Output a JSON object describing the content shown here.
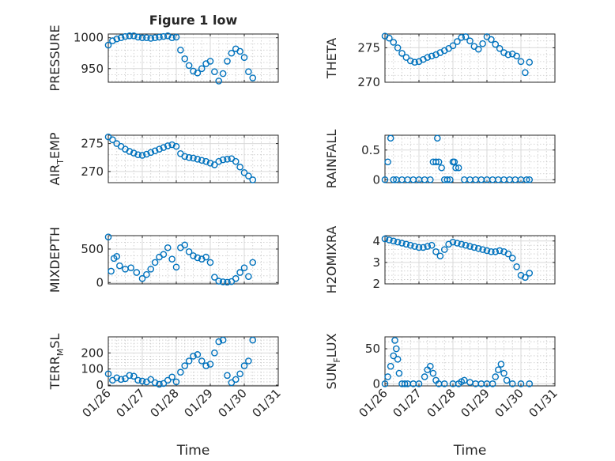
{
  "figure": {
    "title": "Figure 1 low"
  },
  "colors": {
    "marker": "#0072BD",
    "axis": "#262626",
    "grid": "#d9d9d9"
  },
  "chart_data": [
    {
      "id": "pressure",
      "type": "scatter",
      "title": "Figure 1 low",
      "ylabel": "PRESSURE",
      "ylabel_sub": "",
      "xlabel": "",
      "xticklabels": [],
      "ylim": [
        928,
        1006
      ],
      "yticks": [
        950,
        1000
      ],
      "yticklabels": [
        "950",
        "1000"
      ],
      "xlim": [
        "01/26",
        "01/31"
      ],
      "grid": true,
      "x": [
        "01/26 00:00",
        "01/26 03:00",
        "01/26 06:00",
        "01/26 09:00",
        "01/26 12:00",
        "01/26 15:00",
        "01/26 18:00",
        "01/26 21:00",
        "01/27 00:00",
        "01/27 03:00",
        "01/27 06:00",
        "01/27 09:00",
        "01/27 12:00",
        "01/27 15:00",
        "01/27 18:00",
        "01/27 21:00",
        "01/28 00:00",
        "01/28 03:00",
        "01/28 06:00",
        "01/28 09:00",
        "01/28 12:00",
        "01/28 15:00",
        "01/28 18:00",
        "01/28 21:00",
        "01/29 00:00",
        "01/29 03:00",
        "01/29 06:00",
        "01/29 09:00",
        "01/29 12:00",
        "01/29 15:00",
        "01/29 18:00",
        "01/29 21:00",
        "01/30 00:00",
        "01/30 03:00",
        "01/30 06:00"
      ],
      "y": [
        988,
        995,
        998,
        1000,
        1002,
        1003,
        1003,
        1001,
        1000,
        1000,
        999,
        1000,
        1001,
        1002,
        1003,
        1000,
        1001,
        980,
        966,
        955,
        946,
        943,
        950,
        958,
        962,
        945,
        930,
        942,
        962,
        975,
        982,
        978,
        968,
        945,
        935
      ]
    },
    {
      "id": "theta",
      "type": "scatter",
      "ylabel": "THETA",
      "ylabel_sub": "",
      "xlabel": "",
      "xticklabels": [],
      "ylim": [
        270,
        277
      ],
      "yticks": [
        270,
        275
      ],
      "yticklabels": [
        "270",
        "275"
      ],
      "xlim": [
        "01/26",
        "01/31"
      ],
      "grid": true,
      "x": [
        "01/26 00:00",
        "01/26 03:00",
        "01/26 06:00",
        "01/26 09:00",
        "01/26 12:00",
        "01/26 15:00",
        "01/26 18:00",
        "01/26 21:00",
        "01/27 00:00",
        "01/27 03:00",
        "01/27 06:00",
        "01/27 09:00",
        "01/27 12:00",
        "01/27 15:00",
        "01/27 18:00",
        "01/27 21:00",
        "01/28 00:00",
        "01/28 03:00",
        "01/28 06:00",
        "01/28 09:00",
        "01/28 12:00",
        "01/28 15:00",
        "01/28 18:00",
        "01/28 21:00",
        "01/29 00:00",
        "01/29 03:00",
        "01/29 06:00",
        "01/29 09:00",
        "01/29 12:00",
        "01/29 15:00",
        "01/29 18:00",
        "01/29 21:00",
        "01/30 00:00",
        "01/30 03:00",
        "01/30 06:00"
      ],
      "y": [
        276.7,
        276.4,
        275.8,
        275.0,
        274.2,
        273.6,
        273.1,
        272.9,
        273.0,
        273.3,
        273.6,
        273.8,
        274.0,
        274.3,
        274.6,
        274.9,
        275.3,
        275.9,
        276.5,
        276.6,
        276.0,
        275.2,
        274.8,
        275.6,
        276.6,
        276.2,
        275.5,
        274.9,
        274.3,
        274.0,
        274.1,
        273.8,
        273.0,
        271.4,
        272.9
      ]
    },
    {
      "id": "airtemp",
      "type": "scatter",
      "ylabel": "AIR",
      "ylabel_sub": "T",
      "ylabel_post": "EMP",
      "xlabel": "",
      "xticklabels": [],
      "ylim": [
        268,
        276.5
      ],
      "yticks": [
        270,
        275
      ],
      "yticklabels": [
        "270",
        "275"
      ],
      "xlim": [
        "01/26",
        "01/31"
      ],
      "grid": true,
      "x": [
        "01/26 00:00",
        "01/26 03:00",
        "01/26 06:00",
        "01/26 09:00",
        "01/26 12:00",
        "01/26 15:00",
        "01/26 18:00",
        "01/26 21:00",
        "01/27 00:00",
        "01/27 03:00",
        "01/27 06:00",
        "01/27 09:00",
        "01/27 12:00",
        "01/27 15:00",
        "01/27 18:00",
        "01/27 21:00",
        "01/28 00:00",
        "01/28 03:00",
        "01/28 06:00",
        "01/28 09:00",
        "01/28 12:00",
        "01/28 15:00",
        "01/28 18:00",
        "01/28 21:00",
        "01/29 00:00",
        "01/29 03:00",
        "01/29 06:00",
        "01/29 09:00",
        "01/29 12:00",
        "01/29 15:00",
        "01/29 18:00",
        "01/29 21:00",
        "01/30 00:00",
        "01/30 03:00",
        "01/30 06:00"
      ],
      "y": [
        276.2,
        275.7,
        275.0,
        274.5,
        274.0,
        273.6,
        273.3,
        273.0,
        272.9,
        273.1,
        273.4,
        273.7,
        274.0,
        274.3,
        274.6,
        274.8,
        274.5,
        273.2,
        272.7,
        272.5,
        272.4,
        272.2,
        272.0,
        271.8,
        271.5,
        271.2,
        271.8,
        272.1,
        272.2,
        272.3,
        271.8,
        270.8,
        269.8,
        269.2,
        268.5
      ]
    },
    {
      "id": "rainfall",
      "type": "scatter",
      "ylabel": "RAINFALL",
      "ylabel_sub": "",
      "xlabel": "",
      "xticklabels": [],
      "ylim": [
        -0.05,
        0.75
      ],
      "yticks": [
        0,
        0.5
      ],
      "yticklabels": [
        "0",
        "0.5"
      ],
      "xlim": [
        "01/26",
        "01/31"
      ],
      "grid": true,
      "x": [
        "01/26 00:00",
        "01/26 02:00",
        "01/26 04:00",
        "01/26 06:00",
        "01/26 08:00",
        "01/26 12:00",
        "01/26 16:00",
        "01/26 20:00",
        "01/27 00:00",
        "01/27 04:00",
        "01/27 08:00",
        "01/27 10:00",
        "01/27 12:00",
        "01/27 13:00",
        "01/27 14:00",
        "01/27 16:00",
        "01/27 18:00",
        "01/27 20:00",
        "01/27 22:00",
        "01/28 00:00",
        "01/28 01:00",
        "01/28 02:00",
        "01/28 04:00",
        "01/28 08:00",
        "01/28 12:00",
        "01/28 16:00",
        "01/28 20:00",
        "01/29 00:00",
        "01/29 04:00",
        "01/29 08:00",
        "01/29 12:00",
        "01/29 16:00",
        "01/29 20:00",
        "01/30 00:00",
        "01/30 04:00",
        "01/30 06:00"
      ],
      "y": [
        0,
        0.3,
        0.7,
        0,
        0,
        0,
        0,
        0,
        0,
        0,
        0,
        0.3,
        0.3,
        0.7,
        0.3,
        0.2,
        0,
        0,
        0,
        0.3,
        0.3,
        0.2,
        0.2,
        0,
        0,
        0,
        0,
        0,
        0,
        0,
        0,
        0,
        0,
        0,
        0,
        0
      ]
    },
    {
      "id": "mixdepth",
      "type": "scatter",
      "ylabel": "MIXDEPTH",
      "ylabel_sub": "",
      "xlabel": "",
      "xticklabels": [],
      "ylim": [
        -20,
        700
      ],
      "yticks": [
        0,
        500
      ],
      "yticklabels": [
        "0",
        "500"
      ],
      "xlim": [
        "01/26",
        "01/31"
      ],
      "grid": true,
      "x": [
        "01/26 00:00",
        "01/26 02:00",
        "01/26 04:00",
        "01/26 06:00",
        "01/26 08:00",
        "01/26 12:00",
        "01/26 16:00",
        "01/26 20:00",
        "01/27 00:00",
        "01/27 03:00",
        "01/27 06:00",
        "01/27 09:00",
        "01/27 12:00",
        "01/27 15:00",
        "01/27 18:00",
        "01/27 21:00",
        "01/28 00:00",
        "01/28 03:00",
        "01/28 06:00",
        "01/28 09:00",
        "01/28 12:00",
        "01/28 15:00",
        "01/28 18:00",
        "01/28 21:00",
        "01/29 00:00",
        "01/29 03:00",
        "01/29 06:00",
        "01/29 09:00",
        "01/29 12:00",
        "01/29 15:00",
        "01/29 18:00",
        "01/29 21:00",
        "01/30 00:00",
        "01/30 03:00",
        "01/30 06:00"
      ],
      "y": [
        680,
        170,
        360,
        390,
        250,
        200,
        220,
        150,
        60,
        120,
        200,
        300,
        380,
        420,
        520,
        350,
        230,
        520,
        560,
        460,
        400,
        370,
        350,
        380,
        300,
        80,
        20,
        10,
        5,
        15,
        60,
        150,
        220,
        90,
        300
      ]
    },
    {
      "id": "h2omixra",
      "type": "scatter",
      "ylabel": "H2OMIXRA",
      "ylabel_sub": "",
      "xlabel": "",
      "xticklabels": [],
      "ylim": [
        2,
        4.25
      ],
      "yticks": [
        2,
        3,
        4
      ],
      "yticklabels": [
        "2",
        "3",
        "4"
      ],
      "xlim": [
        "01/26",
        "01/31"
      ],
      "grid": true,
      "x": [
        "01/26 00:00",
        "01/26 03:00",
        "01/26 06:00",
        "01/26 09:00",
        "01/26 12:00",
        "01/26 15:00",
        "01/26 18:00",
        "01/26 21:00",
        "01/27 00:00",
        "01/27 03:00",
        "01/27 06:00",
        "01/27 09:00",
        "01/27 12:00",
        "01/27 15:00",
        "01/27 18:00",
        "01/27 21:00",
        "01/28 00:00",
        "01/28 03:00",
        "01/28 06:00",
        "01/28 09:00",
        "01/28 12:00",
        "01/28 15:00",
        "01/28 18:00",
        "01/28 21:00",
        "01/29 00:00",
        "01/29 03:00",
        "01/29 06:00",
        "01/29 09:00",
        "01/29 12:00",
        "01/29 15:00",
        "01/29 18:00",
        "01/29 21:00",
        "01/30 00:00",
        "01/30 03:00",
        "01/30 06:00"
      ],
      "y": [
        4.1,
        4.05,
        4.0,
        3.95,
        3.9,
        3.85,
        3.8,
        3.75,
        3.7,
        3.7,
        3.75,
        3.8,
        3.5,
        3.3,
        3.6,
        3.85,
        3.95,
        3.9,
        3.85,
        3.8,
        3.75,
        3.7,
        3.65,
        3.6,
        3.55,
        3.5,
        3.5,
        3.55,
        3.5,
        3.4,
        3.2,
        2.8,
        2.4,
        2.3,
        2.5
      ]
    },
    {
      "id": "terr_msl",
      "type": "scatter",
      "ylabel": "TERR",
      "ylabel_sub": "M",
      "ylabel_post": "SL",
      "xlabel": "Time",
      "xticklabels": [
        "01/26",
        "01/27",
        "01/28",
        "01/29",
        "01/30",
        "01/31"
      ],
      "ylim": [
        -5,
        300
      ],
      "yticks": [
        0,
        100,
        200
      ],
      "yticklabels": [
        "0",
        "100",
        "200"
      ],
      "xlim": [
        "01/26",
        "01/31"
      ],
      "grid": true,
      "x": [
        "01/26 00:00",
        "01/26 03:00",
        "01/26 06:00",
        "01/26 09:00",
        "01/26 12:00",
        "01/26 15:00",
        "01/26 18:00",
        "01/26 21:00",
        "01/27 00:00",
        "01/27 03:00",
        "01/27 06:00",
        "01/27 09:00",
        "01/27 12:00",
        "01/27 15:00",
        "01/27 18:00",
        "01/27 21:00",
        "01/28 00:00",
        "01/28 03:00",
        "01/28 06:00",
        "01/28 09:00",
        "01/28 12:00",
        "01/28 15:00",
        "01/28 18:00",
        "01/28 21:00",
        "01/29 00:00",
        "01/29 03:00",
        "01/29 06:00",
        "01/29 09:00",
        "01/29 12:00",
        "01/29 15:00",
        "01/29 18:00",
        "01/29 21:00",
        "01/30 00:00",
        "01/30 03:00",
        "01/30 06:00"
      ],
      "y": [
        70,
        30,
        45,
        35,
        40,
        60,
        55,
        30,
        25,
        20,
        35,
        15,
        5,
        10,
        30,
        50,
        20,
        80,
        120,
        150,
        180,
        190,
        150,
        120,
        130,
        200,
        270,
        280,
        60,
        15,
        35,
        70,
        120,
        150,
        280
      ]
    },
    {
      "id": "sun_flux",
      "type": "scatter",
      "ylabel": "SUN",
      "ylabel_sub": "F",
      "ylabel_post": "LUX",
      "xlabel": "Time",
      "xticklabels": [
        "01/26",
        "01/27",
        "01/28",
        "01/29",
        "01/30",
        "01/31"
      ],
      "ylim": [
        -3,
        67
      ],
      "yticks": [
        0,
        50
      ],
      "yticklabels": [
        "0",
        "50"
      ],
      "xlim": [
        "01/26",
        "01/31"
      ],
      "grid": true,
      "x": [
        "01/26 00:00",
        "01/26 02:00",
        "01/26 04:00",
        "01/26 06:00",
        "01/26 07:00",
        "01/26 08:00",
        "01/26 09:00",
        "01/26 10:00",
        "01/26 12:00",
        "01/26 14:00",
        "01/26 16:00",
        "01/26 20:00",
        "01/27 00:00",
        "01/27 04:00",
        "01/27 06:00",
        "01/27 08:00",
        "01/27 10:00",
        "01/27 12:00",
        "01/27 14:00",
        "01/27 18:00",
        "01/28 00:00",
        "01/28 04:00",
        "01/28 06:00",
        "01/28 08:00",
        "01/28 12:00",
        "01/28 16:00",
        "01/28 20:00",
        "01/29 00:00",
        "01/29 04:00",
        "01/29 06:00",
        "01/29 08:00",
        "01/29 10:00",
        "01/29 12:00",
        "01/29 14:00",
        "01/29 18:00",
        "01/30 00:00",
        "01/30 06:00"
      ],
      "y": [
        0,
        10,
        25,
        40,
        62,
        50,
        35,
        15,
        0,
        0,
        0,
        0,
        0,
        10,
        20,
        25,
        15,
        5,
        0,
        0,
        0,
        0,
        3,
        5,
        2,
        0,
        0,
        0,
        0,
        10,
        20,
        28,
        15,
        5,
        0,
        0,
        0
      ]
    }
  ]
}
